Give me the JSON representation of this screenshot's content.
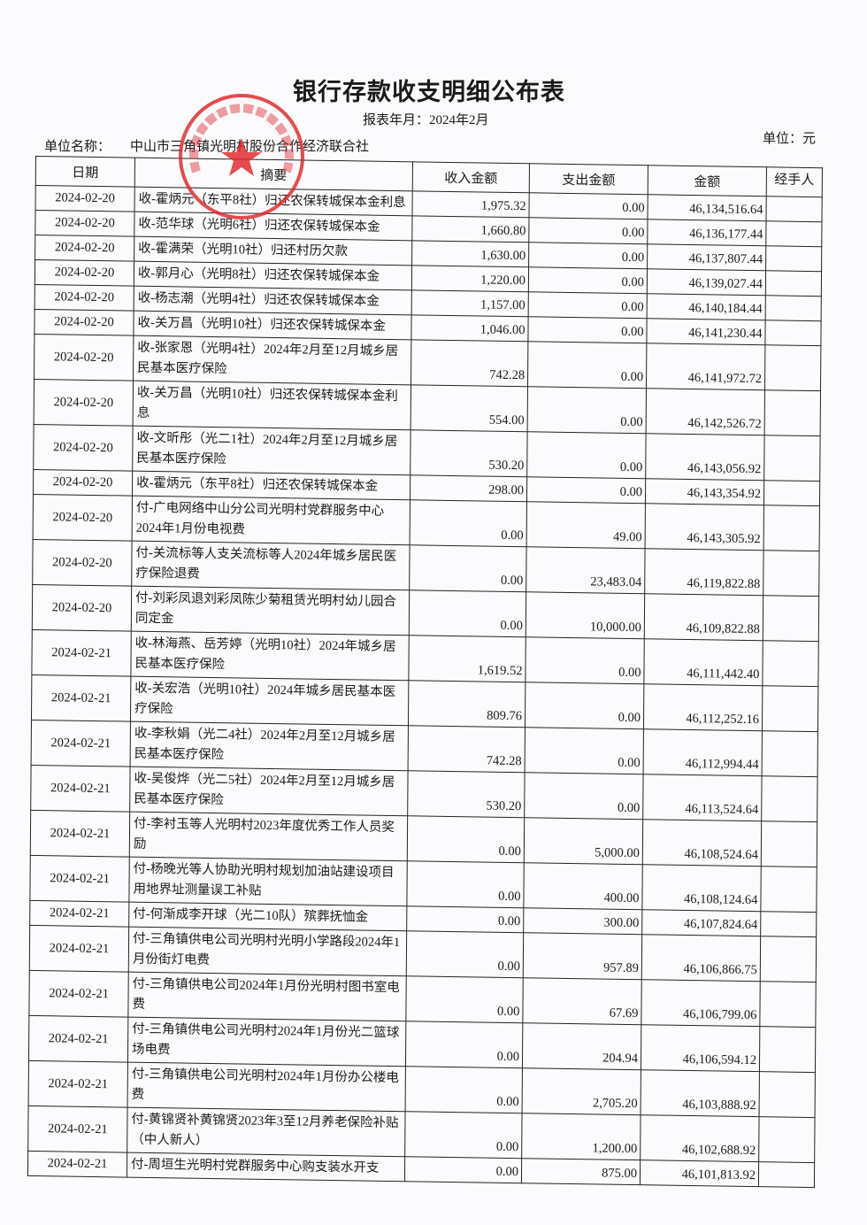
{
  "document": {
    "title": "银行存款收支明细公布表",
    "period_label": "报表年月：2024年2月",
    "unit_label": "单位：元",
    "org_label": "单位名称：",
    "org_name": "中山市三角镇光明村股份合作经济联合社",
    "stamp_text": "中山市三角镇光明村股份合作经济联合社",
    "stamp_color": "#e0262b"
  },
  "table": {
    "headers": {
      "date": "日期",
      "summary": "摘要",
      "income": "收入金额",
      "expense": "支出金额",
      "balance": "金额",
      "handler": "经手人"
    },
    "rows": [
      {
        "date": "2024-02-20",
        "summary": "收-霍炳元（东平8社）归还农保转城保本金利息",
        "income": "1,975.32",
        "expense": "0.00",
        "balance": "46,134,516.64",
        "handler": ""
      },
      {
        "date": "2024-02-20",
        "summary": "收-范华球（光明6社）归还农保转城保本金",
        "income": "1,660.80",
        "expense": "0.00",
        "balance": "46,136,177.44",
        "handler": ""
      },
      {
        "date": "2024-02-20",
        "summary": "收-霍满荣（光明10社）归还村历欠款",
        "income": "1,630.00",
        "expense": "0.00",
        "balance": "46,137,807.44",
        "handler": ""
      },
      {
        "date": "2024-02-20",
        "summary": "收-郭月心（光明8社）归还农保转城保本金",
        "income": "1,220.00",
        "expense": "0.00",
        "balance": "46,139,027.44",
        "handler": ""
      },
      {
        "date": "2024-02-20",
        "summary": "收-杨志潮（光明4社）归还农保转城保本金",
        "income": "1,157.00",
        "expense": "0.00",
        "balance": "46,140,184.44",
        "handler": ""
      },
      {
        "date": "2024-02-20",
        "summary": "收-关万昌（光明10社）归还农保转城保本金",
        "income": "1,046.00",
        "expense": "0.00",
        "balance": "46,141,230.44",
        "handler": ""
      },
      {
        "date": "2024-02-20",
        "summary": "收-张家恩（光明4社）2024年2月至12月城乡居民基本医疗保险",
        "income": "742.28",
        "expense": "0.00",
        "balance": "46,141,972.72",
        "handler": ""
      },
      {
        "date": "2024-02-20",
        "summary": "收-关万昌（光明10社）归还农保转城保本金利息",
        "income": "554.00",
        "expense": "0.00",
        "balance": "46,142,526.72",
        "handler": ""
      },
      {
        "date": "2024-02-20",
        "summary": "收-文昕彤（光二1社）2024年2月至12月城乡居民基本医疗保险",
        "income": "530.20",
        "expense": "0.00",
        "balance": "46,143,056.92",
        "handler": ""
      },
      {
        "date": "2024-02-20",
        "summary": "收-霍炳元（东平8社）归还农保转城保本金",
        "income": "298.00",
        "expense": "0.00",
        "balance": "46,143,354.92",
        "handler": ""
      },
      {
        "date": "2024-02-20",
        "summary": "付-广电网络中山分公司光明村党群服务中心2024年1月份电视费",
        "income": "0.00",
        "expense": "49.00",
        "balance": "46,143,305.92",
        "handler": ""
      },
      {
        "date": "2024-02-20",
        "summary": "付-关流标等人支关流标等人2024年城乡居民医疗保险退费",
        "income": "0.00",
        "expense": "23,483.04",
        "balance": "46,119,822.88",
        "handler": ""
      },
      {
        "date": "2024-02-20",
        "summary": "付-刘彩凤退刘彩凤陈少菊租赁光明村幼儿园合同定金",
        "income": "0.00",
        "expense": "10,000.00",
        "balance": "46,109,822.88",
        "handler": ""
      },
      {
        "date": "2024-02-21",
        "summary": "收-林海燕、岳芳婷（光明10社）2024年城乡居民基本医疗保险",
        "income": "1,619.52",
        "expense": "0.00",
        "balance": "46,111,442.40",
        "handler": ""
      },
      {
        "date": "2024-02-21",
        "summary": "收-关宏浩（光明10社）2024年城乡居民基本医疗保险",
        "income": "809.76",
        "expense": "0.00",
        "balance": "46,112,252.16",
        "handler": ""
      },
      {
        "date": "2024-02-21",
        "summary": "收-李秋娟（光二4社）2024年2月至12月城乡居民基本医疗保险",
        "income": "742.28",
        "expense": "0.00",
        "balance": "46,112,994.44",
        "handler": ""
      },
      {
        "date": "2024-02-21",
        "summary": "收-吴俊烨（光二5社）2024年2月至12月城乡居民基本医疗保险",
        "income": "530.20",
        "expense": "0.00",
        "balance": "46,113,524.64",
        "handler": ""
      },
      {
        "date": "2024-02-21",
        "summary": "付-李衬玉等人光明村2023年度优秀工作人员奖励",
        "income": "0.00",
        "expense": "5,000.00",
        "balance": "46,108,524.64",
        "handler": ""
      },
      {
        "date": "2024-02-21",
        "summary": "付-杨晚光等人协助光明村规划加油站建设项目用地界址测量误工补贴",
        "income": "0.00",
        "expense": "400.00",
        "balance": "46,108,124.64",
        "handler": ""
      },
      {
        "date": "2024-02-21",
        "summary": "付-何渐成李开球（光二10队）殡葬抚恤金",
        "income": "0.00",
        "expense": "300.00",
        "balance": "46,107,824.64",
        "handler": ""
      },
      {
        "date": "2024-02-21",
        "summary": "付-三角镇供电公司光明村光明小学路段2024年1月份街灯电费",
        "income": "0.00",
        "expense": "957.89",
        "balance": "46,106,866.75",
        "handler": ""
      },
      {
        "date": "2024-02-21",
        "summary": "付-三角镇供电公司2024年1月份光明村图书室电费",
        "income": "0.00",
        "expense": "67.69",
        "balance": "46,106,799.06",
        "handler": ""
      },
      {
        "date": "2024-02-21",
        "summary": "付-三角镇供电公司光明村2024年1月份光二篮球场电费",
        "income": "0.00",
        "expense": "204.94",
        "balance": "46,106,594.12",
        "handler": ""
      },
      {
        "date": "2024-02-21",
        "summary": "付-三角镇供电公司光明村2024年1月份办公楼电费",
        "income": "0.00",
        "expense": "2,705.20",
        "balance": "46,103,888.92",
        "handler": ""
      },
      {
        "date": "2024-02-21",
        "summary": "付-黄锦贤补黄锦贤2023年3至12月养老保险补贴（中人新人）",
        "income": "0.00",
        "expense": "1,200.00",
        "balance": "46,102,688.92",
        "handler": ""
      },
      {
        "date": "2024-02-21",
        "summary": "付-周垣生光明村党群服务中心购支装水开支",
        "income": "0.00",
        "expense": "875.00",
        "balance": "46,101,813.92",
        "handler": ""
      }
    ]
  }
}
